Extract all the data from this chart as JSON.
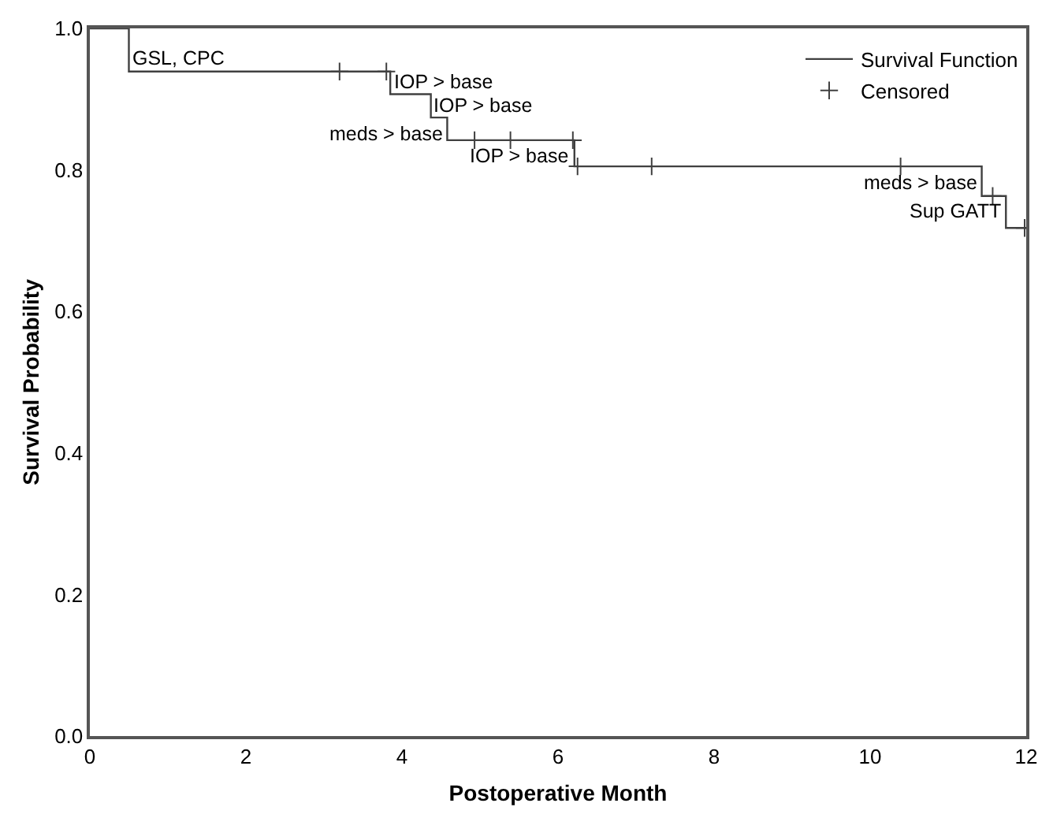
{
  "chart_data": {
    "type": "step",
    "xlabel": "Postoperative Month",
    "ylabel": "Survival Probability",
    "xlim": [
      0,
      12
    ],
    "xticks": [
      0,
      2,
      4,
      6,
      8,
      10,
      12
    ],
    "ylim": [
      0,
      1
    ],
    "yticks": [
      {
        "value": 0,
        "label": "0.0"
      },
      0.2,
      0.4,
      0.6,
      0.8,
      {
        "value": 1,
        "label": "1.0"
      }
    ],
    "legend": "top right",
    "series": [
      {
        "name": "Survival Function",
        "color": "#404040",
        "x": [
          0,
          0.5,
          3.85,
          4.37,
          4.58,
          6.21,
          11.43,
          11.74,
          12
        ],
        "values": [
          1,
          0.939,
          0.907,
          0.874,
          0.842,
          0.805,
          0.763,
          0.718,
          0.718
        ]
      },
      {
        "name": "Censored",
        "type": "scatter",
        "marker": "cross",
        "color": "#404040",
        "x": [
          3.2,
          3.8,
          4.93,
          5.39,
          6.19,
          6.25,
          7.2,
          10.39,
          11.57,
          11.98
        ],
        "values": [
          0.939,
          0.939,
          0.842,
          0.842,
          0.842,
          0.805,
          0.805,
          0.805,
          0.763,
          0.718
        ]
      }
    ],
    "annotations": [
      {
        "text": "GSL, CPC",
        "x": 0.5,
        "y": 0.939
      },
      {
        "text": "IOP > base",
        "x": 3.85,
        "y": 0.907
      },
      {
        "text": "IOP > base",
        "x": 4.37,
        "y": 0.874
      },
      {
        "text": "meds > base",
        "x": 4.58,
        "y": 0.874
      },
      {
        "text": "IOP > base",
        "x": 6.21,
        "y": 0.842
      },
      {
        "text": "meds > base",
        "x": 11.43,
        "y": 0.805
      },
      {
        "text": "Sup GATT",
        "x": 11.74,
        "y": 0.763
      }
    ]
  }
}
